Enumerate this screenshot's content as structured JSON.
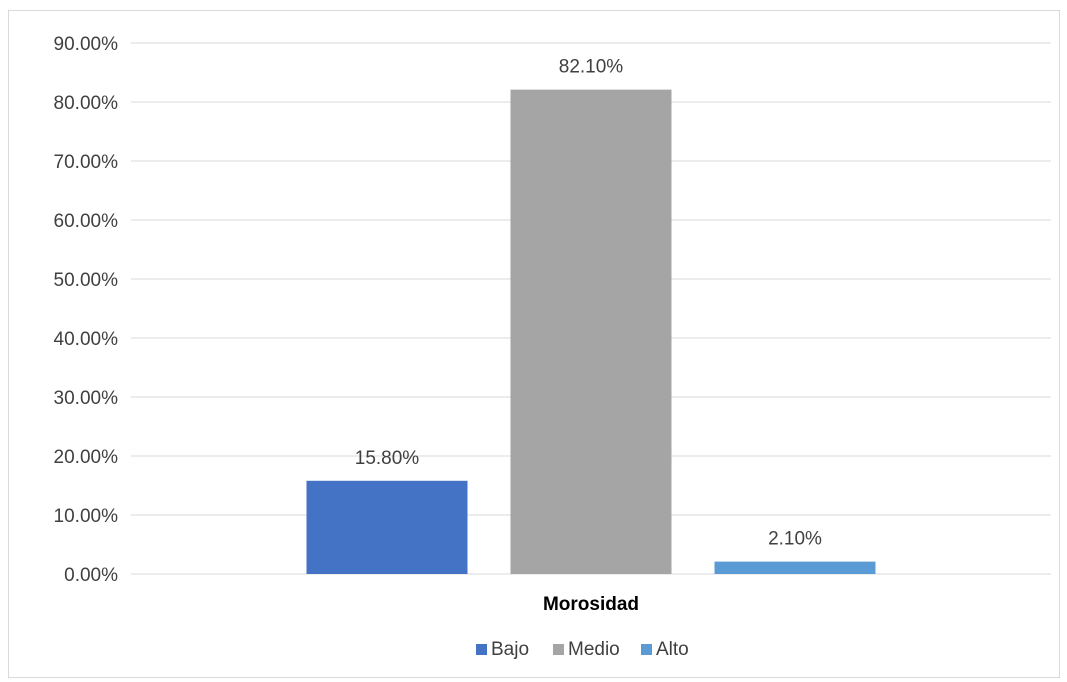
{
  "chart_data": {
    "type": "bar",
    "categories": [
      "Morosidad"
    ],
    "series": [
      {
        "name": "Bajo",
        "values": [
          15.8
        ],
        "label": "15.80%",
        "color": "#4472C4"
      },
      {
        "name": "Medio",
        "values": [
          82.1
        ],
        "label": "82.10%",
        "color": "#A5A5A5"
      },
      {
        "name": "Alto",
        "values": [
          2.1
        ],
        "label": "2.10%",
        "color": "#5B9BD5"
      }
    ],
    "ylim": [
      0,
      90
    ],
    "yticks": [
      0,
      10,
      20,
      30,
      40,
      50,
      60,
      70,
      80,
      90
    ],
    "ytick_labels": [
      "0.00%",
      "10.00%",
      "20.00%",
      "30.00%",
      "40.00%",
      "50.00%",
      "60.00%",
      "70.00%",
      "80.00%",
      "90.00%"
    ],
    "title": "",
    "xlabel": "",
    "ylabel": "",
    "grid": true,
    "legend_position": "bottom"
  }
}
